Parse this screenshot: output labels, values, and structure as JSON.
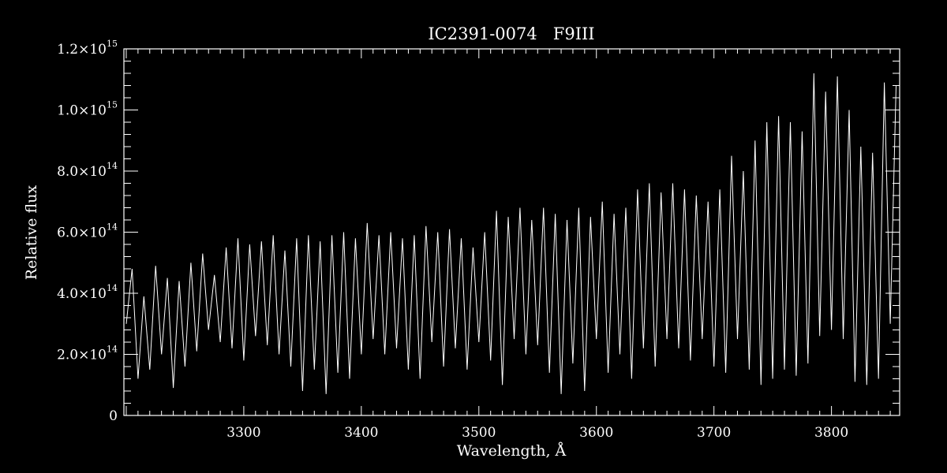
{
  "chart_data": {
    "type": "line",
    "title": "IC2391-0074   F9III",
    "xlabel": "Wavelength, Å",
    "ylabel": "Relative flux",
    "xlim": [
      3198,
      3858
    ],
    "ylim": [
      0,
      1200000000000000.0
    ],
    "grid": false,
    "legend": "none",
    "colors": {
      "background": "#000000",
      "foreground": "#ffffff"
    },
    "x_ticks": [
      {
        "value": 3300,
        "label": "3300"
      },
      {
        "value": 3400,
        "label": "3400"
      },
      {
        "value": 3500,
        "label": "3500"
      },
      {
        "value": 3600,
        "label": "3600"
      },
      {
        "value": 3700,
        "label": "3700"
      },
      {
        "value": 3800,
        "label": "3800"
      }
    ],
    "y_ticks": [
      {
        "value": 0,
        "mantissa": "0",
        "exponent": ""
      },
      {
        "value": 200000000000000.0,
        "mantissa": "2.0×10",
        "exponent": "14"
      },
      {
        "value": 400000000000000.0,
        "mantissa": "4.0×10",
        "exponent": "14"
      },
      {
        "value": 600000000000000.0,
        "mantissa": "6.0×10",
        "exponent": "14"
      },
      {
        "value": 800000000000000.0,
        "mantissa": "8.0×10",
        "exponent": "14"
      },
      {
        "value": 1000000000000000.0,
        "mantissa": "1.0×10",
        "exponent": "15"
      },
      {
        "value": 1200000000000000.0,
        "mantissa": "1.2×10",
        "exponent": "15"
      }
    ],
    "series": [
      {
        "x": [
          3200,
          3205,
          3210,
          3215,
          3220,
          3225,
          3230,
          3235,
          3240,
          3245,
          3250,
          3255,
          3260,
          3265,
          3270,
          3275,
          3280,
          3285,
          3290,
          3295,
          3300,
          3305,
          3310,
          3315,
          3320,
          3325,
          3330,
          3335,
          3340,
          3345,
          3350,
          3355,
          3360,
          3365,
          3370,
          3375,
          3380,
          3385,
          3390,
          3395,
          3400,
          3405,
          3410,
          3415,
          3420,
          3425,
          3430,
          3435,
          3440,
          3445,
          3450,
          3455,
          3460,
          3465,
          3470,
          3475,
          3480,
          3485,
          3490,
          3495,
          3500,
          3505,
          3510,
          3515,
          3520,
          3525,
          3530,
          3535,
          3540,
          3545,
          3550,
          3555,
          3560,
          3565,
          3570,
          3575,
          3580,
          3585,
          3590,
          3595,
          3600,
          3605,
          3610,
          3615,
          3620,
          3625,
          3630,
          3635,
          3640,
          3645,
          3650,
          3655,
          3660,
          3665,
          3670,
          3675,
          3680,
          3685,
          3690,
          3695,
          3700,
          3705,
          3710,
          3715,
          3720,
          3725,
          3730,
          3735,
          3740,
          3745,
          3750,
          3755,
          3760,
          3765,
          3770,
          3775,
          3780,
          3785,
          3790,
          3795,
          3800,
          3805,
          3810,
          3815,
          3820,
          3825,
          3830,
          3835,
          3840,
          3845,
          3850,
          3855
        ],
        "y": [
          300000000000000.0,
          480000000000000.0,
          120000000000000.0,
          390000000000000.0,
          150000000000000.0,
          490000000000000.0,
          200000000000000.0,
          450000000000000.0,
          90000000000000.0,
          440000000000000.0,
          160000000000000.0,
          500000000000000.0,
          210000000000000.0,
          530000000000000.0,
          280000000000000.0,
          460000000000000.0,
          240000000000000.0,
          550000000000000.0,
          220000000000000.0,
          580000000000000.0,
          180000000000000.0,
          560000000000000.0,
          260000000000000.0,
          570000000000000.0,
          230000000000000.0,
          590000000000000.0,
          200000000000000.0,
          540000000000000.0,
          160000000000000.0,
          580000000000000.0,
          80000000000000.0,
          590000000000000.0,
          150000000000000.0,
          570000000000000.0,
          70000000000000.0,
          590000000000000.0,
          140000000000000.0,
          600000000000000.0,
          120000000000000.0,
          580000000000000.0,
          200000000000000.0,
          630000000000000.0,
          250000000000000.0,
          590000000000000.0,
          200000000000000.0,
          600000000000000.0,
          220000000000000.0,
          580000000000000.0,
          150000000000000.0,
          590000000000000.0,
          120000000000000.0,
          620000000000000.0,
          240000000000000.0,
          600000000000000.0,
          160000000000000.0,
          610000000000000.0,
          220000000000000.0,
          580000000000000.0,
          150000000000000.0,
          550000000000000.0,
          240000000000000.0,
          600000000000000.0,
          180000000000000.0,
          670000000000000.0,
          100000000000000.0,
          650000000000000.0,
          250000000000000.0,
          680000000000000.0,
          200000000000000.0,
          640000000000000.0,
          230000000000000.0,
          680000000000000.0,
          140000000000000.0,
          660000000000000.0,
          70000000000000.0,
          640000000000000.0,
          170000000000000.0,
          680000000000000.0,
          80000000000000.0,
          650000000000000.0,
          250000000000000.0,
          700000000000000.0,
          140000000000000.0,
          660000000000000.0,
          200000000000000.0,
          680000000000000.0,
          120000000000000.0,
          740000000000000.0,
          220000000000000.0,
          760000000000000.0,
          160000000000000.0,
          730000000000000.0,
          250000000000000.0,
          760000000000000.0,
          220000000000000.0,
          740000000000000.0,
          180000000000000.0,
          720000000000000.0,
          250000000000000.0,
          700000000000000.0,
          160000000000000.0,
          740000000000000.0,
          140000000000000.0,
          850000000000000.0,
          250000000000000.0,
          800000000000000.0,
          150000000000000.0,
          900000000000000.0,
          100000000000000.0,
          960000000000000.0,
          120000000000000.0,
          980000000000000.0,
          150000000000000.0,
          960000000000000.0,
          130000000000000.0,
          930000000000000.0,
          170000000000000.0,
          1120000000000000.0,
          260000000000000.0,
          1060000000000000.0,
          280000000000000.0,
          1110000000000000.0,
          250000000000000.0,
          1000000000000000.0,
          110000000000000.0,
          880000000000000.0,
          100000000000000.0,
          860000000000000.0,
          120000000000000.0,
          1090000000000000.0,
          300000000000000.0,
          1080000000000000.0
        ]
      }
    ]
  }
}
